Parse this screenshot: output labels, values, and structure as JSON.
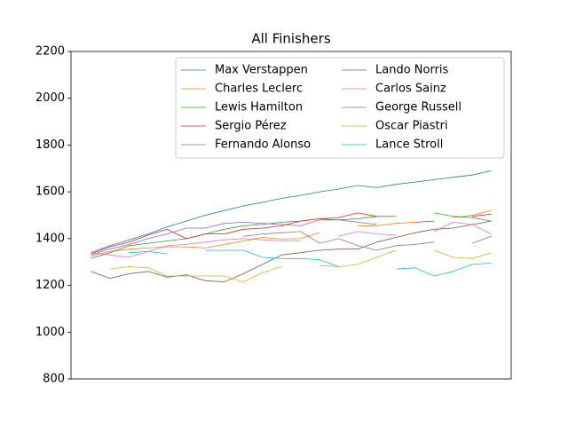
{
  "chart_data": {
    "type": "line",
    "title": "All Finishers",
    "categories": [
      null,
      null,
      null,
      null,
      null,
      null,
      null,
      null,
      null,
      null,
      null,
      null,
      null,
      null,
      null,
      null,
      null,
      null,
      null,
      null,
      null,
      null
    ],
    "ylim": [
      800,
      2200
    ],
    "yticks": [
      800,
      1000,
      1200,
      1400,
      1600,
      1800,
      2000,
      2200
    ],
    "legend": "upper right",
    "legend_columns": 2,
    "series": [
      {
        "name": "Max Verstappen",
        "color": "#1f77b4",
        "values": [
          1340,
          1370,
          1395,
          1420,
          1450,
          1475,
          1500,
          1520,
          1540,
          1555,
          1572,
          1585,
          1600,
          1612,
          1627,
          1618,
          1632,
          1642,
          1652,
          1662,
          1672,
          1690
        ]
      },
      {
        "name": "Charles Leclerc",
        "color": "#ff7f0e",
        "values": [
          1325,
          1345,
          1355,
          1360,
          1365,
          1365,
          1360,
          1375,
          1390,
          1405,
          1398,
          1400,
          1425,
          null,
          1455,
          1455,
          1465,
          1470,
          null,
          1490,
          1500,
          1520
        ]
      },
      {
        "name": "Lewis Hamilton",
        "color": "#2ca02c",
        "values": [
          1315,
          1340,
          1370,
          1380,
          1390,
          1400,
          1420,
          1440,
          1455,
          1460,
          1470,
          1475,
          1485,
          1480,
          1485,
          1495,
          1495,
          null,
          1510,
          1495,
          1490,
          1475
        ]
      },
      {
        "name": "Sergio Pérez",
        "color": "#d62728",
        "values": [
          1335,
          1365,
          1385,
          1415,
          1440,
          1400,
          1420,
          1420,
          1440,
          1445,
          1455,
          1475,
          1485,
          1490,
          1510,
          1495,
          null,
          1470,
          1475,
          null,
          1495,
          1505
        ]
      },
      {
        "name": "Fernando Alonso",
        "color": "#9467bd",
        "values": [
          1330,
          1355,
          1375,
          1400,
          1420,
          1445,
          1445,
          1465,
          1470,
          1465,
          1460,
          1455,
          1480,
          1480,
          1470,
          1460,
          null,
          null,
          null,
          null,
          null,
          null
        ]
      },
      {
        "name": "Lando Norris",
        "color": "#8c564b",
        "values": [
          1260,
          1230,
          1250,
          1260,
          1235,
          1245,
          1220,
          1215,
          1250,
          1290,
          1330,
          1340,
          1350,
          1355,
          1355,
          1385,
          1405,
          1425,
          1440,
          1445,
          1460,
          1475
        ]
      },
      {
        "name": "Carlos Sainz",
        "color": "#e377c2",
        "values": [
          1340,
          1330,
          1320,
          1345,
          1370,
          1375,
          1385,
          1395,
          1400,
          1395,
          1390,
          1390,
          null,
          1410,
          1430,
          1420,
          1415,
          null,
          1430,
          1470,
          1460,
          1420
        ]
      },
      {
        "name": "George Russell",
        "color": "#7f7f7f",
        "values": [
          null,
          null,
          null,
          null,
          null,
          null,
          null,
          null,
          1410,
          1420,
          1425,
          1430,
          1380,
          1400,
          1370,
          1350,
          1370,
          1375,
          1385,
          null,
          1380,
          1410
        ]
      },
      {
        "name": "Oscar Piastri",
        "color": "#bcbd22",
        "values": [
          null,
          1270,
          1280,
          1275,
          1240,
          1240,
          1240,
          1240,
          1215,
          1255,
          1280,
          null,
          1285,
          1280,
          1290,
          1320,
          1350,
          null,
          1350,
          1320,
          1315,
          1340
        ]
      },
      {
        "name": "Lance Stroll",
        "color": "#17becf",
        "values": [
          null,
          null,
          1340,
          1345,
          1335,
          null,
          1350,
          1350,
          1350,
          1320,
          1315,
          1315,
          1310,
          1280,
          null,
          null,
          1270,
          1275,
          1240,
          1260,
          1290,
          1295
        ]
      }
    ]
  }
}
